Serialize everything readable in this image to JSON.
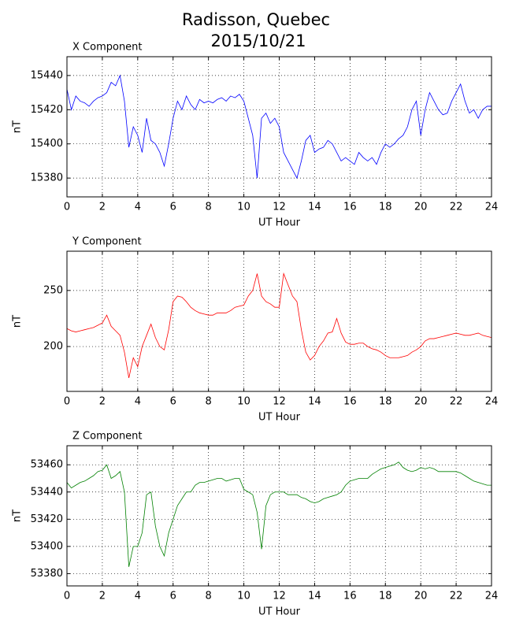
{
  "title": [
    "Radisson, Quebec",
    "2015/10/21"
  ],
  "chart_data": [
    {
      "type": "line",
      "title": "X Component",
      "xlabel": "UT Hour",
      "ylabel": "nT",
      "color": "#0000ff",
      "grid": true,
      "xlim": [
        0,
        24
      ],
      "xticks": [
        0,
        2,
        4,
        6,
        8,
        10,
        12,
        14,
        16,
        18,
        20,
        22,
        24
      ],
      "ylim": [
        15369,
        15451
      ],
      "yticks": [
        15380,
        15400,
        15420,
        15440
      ],
      "x": [
        0,
        0.25,
        0.5,
        0.75,
        1,
        1.25,
        1.5,
        1.75,
        2,
        2.25,
        2.5,
        2.75,
        3,
        3.25,
        3.5,
        3.75,
        4,
        4.25,
        4.5,
        4.75,
        5,
        5.25,
        5.5,
        5.75,
        6,
        6.25,
        6.5,
        6.75,
        7,
        7.25,
        7.5,
        7.75,
        8,
        8.25,
        8.5,
        8.75,
        9,
        9.25,
        9.5,
        9.75,
        10,
        10.25,
        10.5,
        10.75,
        11,
        11.25,
        11.5,
        11.75,
        12,
        12.25,
        12.5,
        12.75,
        13,
        13.25,
        13.5,
        13.75,
        14,
        14.25,
        14.5,
        14.75,
        15,
        15.25,
        15.5,
        15.75,
        16,
        16.25,
        16.5,
        16.75,
        17,
        17.25,
        17.5,
        17.75,
        18,
        18.25,
        18.5,
        18.75,
        19,
        19.25,
        19.5,
        19.75,
        20,
        20.25,
        20.5,
        20.75,
        21,
        21.25,
        21.5,
        21.75,
        22,
        22.25,
        22.5,
        22.75,
        23,
        23.25,
        23.5,
        23.75,
        24
      ],
      "values": [
        15432,
        15420,
        15428,
        15425,
        15424,
        15422,
        15425,
        15427,
        15428,
        15430,
        15436,
        15434,
        15440,
        15425,
        15398,
        15410,
        15405,
        15395,
        15415,
        15402,
        15400,
        15395,
        15387,
        15400,
        15415,
        15425,
        15420,
        15428,
        15423,
        15420,
        15426,
        15424,
        15425,
        15424,
        15426,
        15427,
        15425,
        15428,
        15427,
        15429,
        15425,
        15415,
        15405,
        15380,
        15415,
        15418,
        15412,
        15415,
        15410,
        15395,
        15390,
        15385,
        15380,
        15390,
        15402,
        15405,
        15395,
        15397,
        15398,
        15402,
        15400,
        15395,
        15390,
        15392,
        15390,
        15388,
        15395,
        15392,
        15390,
        15392,
        15388,
        15395,
        15400,
        15398,
        15400,
        15403,
        15405,
        15410,
        15420,
        15425,
        15405,
        15420,
        15430,
        15425,
        15420,
        15417,
        15418,
        15425,
        15430,
        15435,
        15425,
        15418,
        15420,
        15415,
        15420,
        15422,
        15422
      ]
    },
    {
      "type": "line",
      "title": "Y Component",
      "xlabel": "UT Hour",
      "ylabel": "nT",
      "color": "#ff0000",
      "grid": true,
      "xlim": [
        0,
        24
      ],
      "xticks": [
        0,
        2,
        4,
        6,
        8,
        10,
        12,
        14,
        16,
        18,
        20,
        22,
        24
      ],
      "ylim": [
        160,
        285
      ],
      "yticks": [
        200,
        250
      ],
      "x": [
        0,
        0.25,
        0.5,
        0.75,
        1,
        1.25,
        1.5,
        1.75,
        2,
        2.25,
        2.5,
        2.75,
        3,
        3.25,
        3.5,
        3.75,
        4,
        4.25,
        4.5,
        4.75,
        5,
        5.25,
        5.5,
        5.75,
        6,
        6.25,
        6.5,
        6.75,
        7,
        7.25,
        7.5,
        7.75,
        8,
        8.25,
        8.5,
        8.75,
        9,
        9.25,
        9.5,
        9.75,
        10,
        10.25,
        10.5,
        10.75,
        11,
        11.25,
        11.5,
        11.75,
        12,
        12.25,
        12.5,
        12.75,
        13,
        13.25,
        13.5,
        13.75,
        14,
        14.25,
        14.5,
        14.75,
        15,
        15.25,
        15.5,
        15.75,
        16,
        16.25,
        16.5,
        16.75,
        17,
        17.25,
        17.5,
        17.75,
        18,
        18.25,
        18.5,
        18.75,
        19,
        19.25,
        19.5,
        19.75,
        20,
        20.25,
        20.5,
        20.75,
        21,
        21.25,
        21.5,
        21.75,
        22,
        22.25,
        22.5,
        22.75,
        23,
        23.25,
        23.5,
        23.75,
        24
      ],
      "values": [
        216,
        214,
        213,
        214,
        215,
        216,
        217,
        219,
        221,
        228,
        218,
        214,
        210,
        195,
        172,
        190,
        182,
        200,
        210,
        220,
        208,
        200,
        197,
        215,
        240,
        245,
        244,
        240,
        235,
        232,
        230,
        229,
        228,
        228,
        230,
        230,
        230,
        232,
        235,
        236,
        237,
        245,
        250,
        265,
        245,
        240,
        238,
        235,
        235,
        265,
        255,
        245,
        240,
        215,
        195,
        188,
        192,
        200,
        205,
        212,
        213,
        225,
        212,
        204,
        202,
        202,
        203,
        203,
        200,
        198,
        197,
        195,
        192,
        190,
        190,
        190,
        191,
        192,
        195,
        197,
        200,
        205,
        207,
        207,
        208,
        209,
        210,
        211,
        212,
        211,
        210,
        210,
        211,
        212,
        210,
        209,
        208
      ]
    },
    {
      "type": "line",
      "title": "Z Component",
      "xlabel": "UT Hour",
      "ylabel": "nT",
      "color": "#008000",
      "grid": true,
      "xlim": [
        0,
        24
      ],
      "xticks": [
        0,
        2,
        4,
        6,
        8,
        10,
        12,
        14,
        16,
        18,
        20,
        22,
        24
      ],
      "ylim": [
        53371,
        53474
      ],
      "yticks": [
        53380,
        53400,
        53420,
        53440,
        53460
      ],
      "x": [
        0,
        0.25,
        0.5,
        0.75,
        1,
        1.25,
        1.5,
        1.75,
        2,
        2.25,
        2.5,
        2.75,
        3,
        3.25,
        3.5,
        3.75,
        4,
        4.25,
        4.5,
        4.75,
        5,
        5.25,
        5.5,
        5.75,
        6,
        6.25,
        6.5,
        6.75,
        7,
        7.25,
        7.5,
        7.75,
        8,
        8.25,
        8.5,
        8.75,
        9,
        9.25,
        9.5,
        9.75,
        10,
        10.25,
        10.5,
        10.75,
        11,
        11.25,
        11.5,
        11.75,
        12,
        12.25,
        12.5,
        12.75,
        13,
        13.25,
        13.5,
        13.75,
        14,
        14.25,
        14.5,
        14.75,
        15,
        15.25,
        15.5,
        15.75,
        16,
        16.25,
        16.5,
        16.75,
        17,
        17.25,
        17.5,
        17.75,
        18,
        18.25,
        18.5,
        18.75,
        19,
        19.25,
        19.5,
        19.75,
        20,
        20.25,
        20.5,
        20.75,
        21,
        21.25,
        21.5,
        21.75,
        22,
        22.25,
        22.5,
        22.75,
        23,
        23.25,
        23.5,
        23.75,
        24
      ],
      "values": [
        53447,
        53443,
        53445,
        53447,
        53448,
        53450,
        53452,
        53455,
        53456,
        53460,
        53450,
        53452,
        53455,
        53440,
        53385,
        53400,
        53400,
        53410,
        53438,
        53440,
        53415,
        53400,
        53393,
        53410,
        53420,
        53430,
        53435,
        53440,
        53440,
        53445,
        53447,
        53447,
        53448,
        53449,
        53450,
        53450,
        53448,
        53449,
        53450,
        53450,
        53442,
        53440,
        53438,
        53425,
        53398,
        53430,
        53438,
        53440,
        53440,
        53440,
        53438,
        53438,
        53438,
        53436,
        53435,
        53433,
        53432,
        53433,
        53435,
        53436,
        53437,
        53438,
        53440,
        53445,
        53448,
        53449,
        53450,
        53450,
        53450,
        53453,
        53455,
        53457,
        53458,
        53459,
        53460,
        53462,
        53458,
        53456,
        53455,
        53456,
        53458,
        53457,
        53458,
        53457,
        53455,
        53455,
        53455,
        53455,
        53455,
        53454,
        53452,
        53450,
        53448,
        53447,
        53446,
        53445,
        53445
      ]
    }
  ]
}
